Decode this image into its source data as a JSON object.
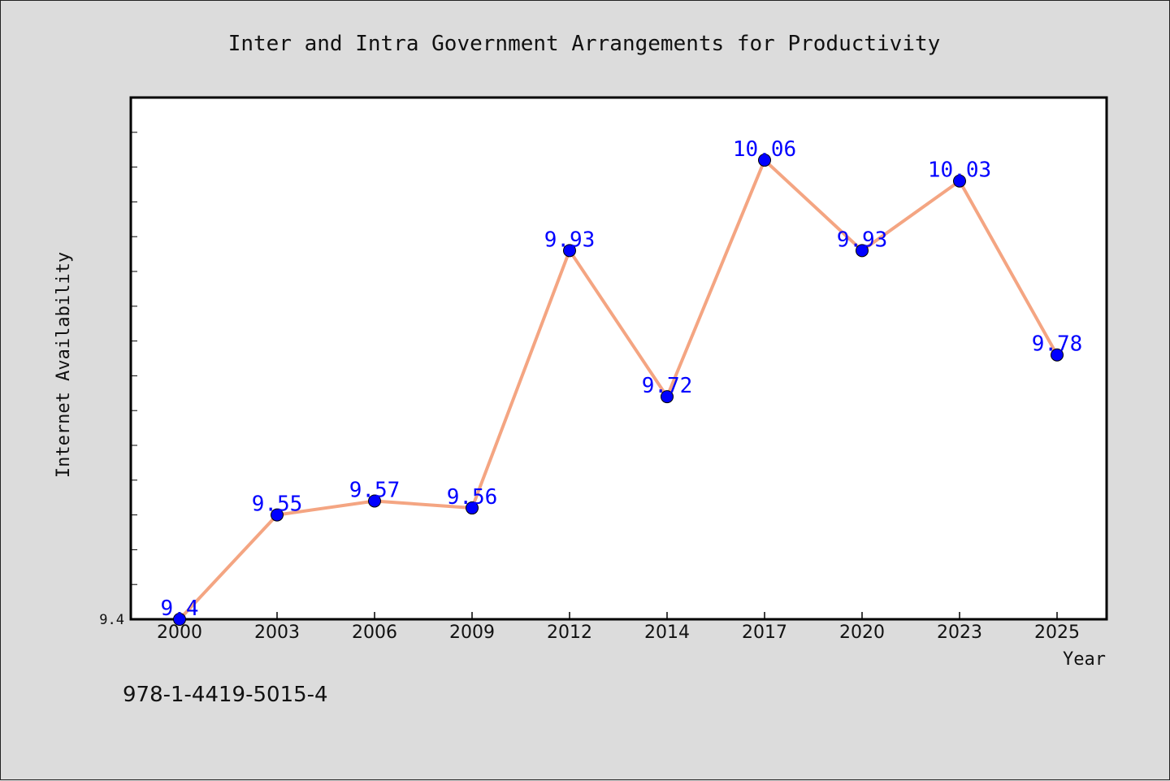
{
  "chart_data": {
    "type": "line",
    "title": "Inter and Intra Government Arrangements for Productivity",
    "xlabel": "Year",
    "ylabel": "Internet Availability",
    "x": [
      "2000",
      "2003",
      "2006",
      "2009",
      "2012",
      "2014",
      "2017",
      "2020",
      "2023",
      "2025"
    ],
    "series": [
      {
        "values": [
          9.4,
          9.55,
          9.57,
          9.56,
          9.93,
          9.72,
          10.06,
          9.93,
          10.03,
          9.78
        ],
        "labels": [
          "9.4",
          "9.55",
          "9.57",
          "9.56",
          "9.93",
          "9.72",
          "10.06",
          "9.93",
          "10.03",
          "9.78"
        ]
      }
    ],
    "ylim": [
      9.4,
      10.15
    ],
    "yticks": [
      9.4
    ],
    "ytick_labels": [
      "9.4"
    ],
    "line_color": "#f4a582",
    "marker_color": "#0000ff",
    "label_color": "#0000ff",
    "grid": false,
    "annotation": "978-1-4419-5015-4"
  }
}
